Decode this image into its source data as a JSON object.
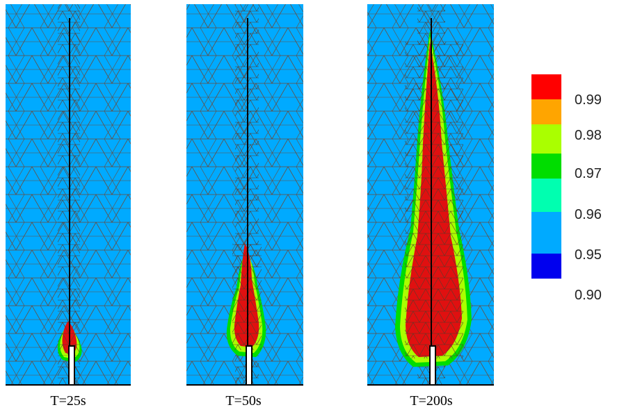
{
  "panels": [
    {
      "caption": "T=25s"
    },
    {
      "caption": "T=50s"
    },
    {
      "caption": "T=200s"
    }
  ],
  "colorbar": {
    "colors": [
      "#ff0000",
      "#ffa500",
      "#aaff00",
      "#00dd00",
      "#00ffb0",
      "#00aaff",
      "#0000ee"
    ],
    "labels": [
      "0.99",
      "0.98",
      "0.97",
      "0.96",
      "0.95",
      "0.90"
    ]
  },
  "colors": {
    "background_field": "#00aaff",
    "mesh": "#6b4a3a",
    "core": "#e01010"
  }
}
